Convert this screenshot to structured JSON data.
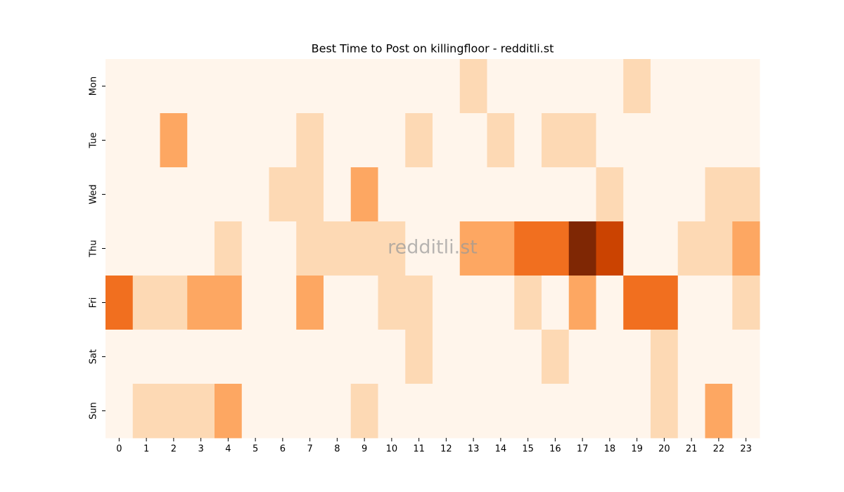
{
  "chart_data": {
    "type": "heatmap",
    "title": "Best Time to Post on killingfloor - redditli.st",
    "watermark": "redditli.st",
    "x": [
      0,
      1,
      2,
      3,
      4,
      5,
      6,
      7,
      8,
      9,
      10,
      11,
      12,
      13,
      14,
      15,
      16,
      17,
      18,
      19,
      20,
      21,
      22,
      23
    ],
    "y": [
      "Mon",
      "Tue",
      "Wed",
      "Thu",
      "Fri",
      "Sat",
      "Sun"
    ],
    "z": [
      [
        0,
        0,
        0,
        0,
        0,
        0,
        0,
        0,
        0,
        0,
        0,
        0,
        0,
        1,
        0,
        0,
        0,
        0,
        0,
        1,
        0,
        0,
        0,
        0
      ],
      [
        0,
        0,
        2,
        0,
        0,
        0,
        0,
        1,
        0,
        0,
        0,
        1,
        0,
        0,
        1,
        0,
        1,
        1,
        0,
        0,
        0,
        0,
        0,
        0
      ],
      [
        0,
        0,
        0,
        0,
        0,
        0,
        1,
        1,
        0,
        2,
        0,
        0,
        0,
        0,
        0,
        0,
        0,
        0,
        1,
        0,
        0,
        0,
        1,
        1
      ],
      [
        0,
        0,
        0,
        0,
        1,
        0,
        0,
        1,
        1,
        1,
        1,
        0,
        0,
        2,
        2,
        3,
        3,
        5,
        4,
        0,
        0,
        1,
        1,
        2
      ],
      [
        3,
        1,
        1,
        2,
        2,
        0,
        0,
        2,
        0,
        0,
        1,
        1,
        0,
        0,
        0,
        1,
        0,
        2,
        0,
        3,
        3,
        0,
        0,
        1
      ],
      [
        0,
        0,
        0,
        0,
        0,
        0,
        0,
        0,
        0,
        0,
        0,
        1,
        0,
        0,
        0,
        0,
        1,
        0,
        0,
        0,
        1,
        0,
        0,
        0
      ],
      [
        0,
        1,
        1,
        1,
        2,
        0,
        0,
        0,
        0,
        1,
        0,
        0,
        0,
        0,
        0,
        0,
        0,
        0,
        0,
        0,
        1,
        0,
        2,
        0
      ]
    ],
    "color_scale": [
      "#fff5eb",
      "#fdd9b4",
      "#fda762",
      "#f16f1f",
      "#cb4301",
      "#7f2704"
    ]
  }
}
